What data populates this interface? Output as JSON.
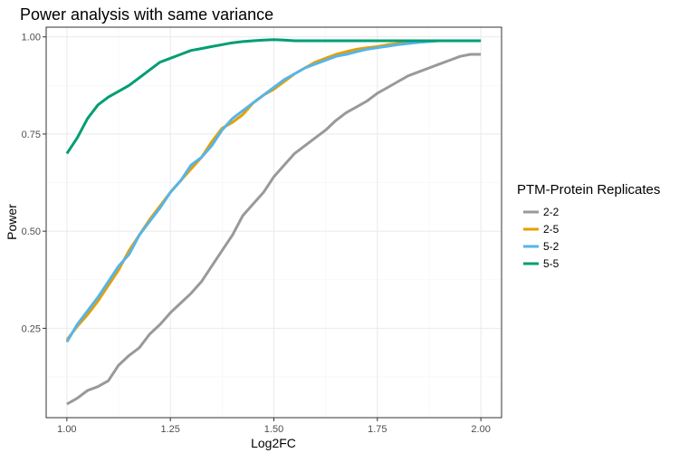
{
  "chart_data": {
    "type": "line",
    "title": "Power analysis with same variance",
    "xlabel": "Log2FC",
    "ylabel": "Power",
    "xlim": [
      0.95,
      2.05
    ],
    "ylim": [
      0.02,
      1.025
    ],
    "x_ticks": [
      1.0,
      1.25,
      1.5,
      1.75,
      2.0
    ],
    "x_tick_labels": [
      "1.00",
      "1.25",
      "1.50",
      "1.75",
      "2.00"
    ],
    "y_ticks": [
      0.25,
      0.5,
      0.75,
      1.0
    ],
    "y_tick_labels": [
      "0.25",
      "0.50",
      "0.75",
      "1.00"
    ],
    "grid": true,
    "legend": {
      "title": "PTM-Protein Replicates",
      "placement": "right"
    },
    "series": [
      {
        "name": "2-2",
        "color": "#999999",
        "x": [
          1.0,
          1.025,
          1.05,
          1.075,
          1.1,
          1.125,
          1.15,
          1.175,
          1.2,
          1.225,
          1.25,
          1.275,
          1.3,
          1.325,
          1.35,
          1.375,
          1.4,
          1.425,
          1.45,
          1.475,
          1.5,
          1.525,
          1.55,
          1.575,
          1.6,
          1.625,
          1.65,
          1.675,
          1.7,
          1.725,
          1.75,
          1.775,
          1.8,
          1.825,
          1.85,
          1.875,
          1.9,
          1.925,
          1.95,
          1.975,
          2.0
        ],
        "y": [
          0.055,
          0.07,
          0.09,
          0.1,
          0.115,
          0.155,
          0.18,
          0.2,
          0.235,
          0.26,
          0.29,
          0.315,
          0.34,
          0.37,
          0.41,
          0.45,
          0.49,
          0.54,
          0.57,
          0.6,
          0.64,
          0.67,
          0.7,
          0.72,
          0.74,
          0.76,
          0.785,
          0.805,
          0.82,
          0.835,
          0.855,
          0.87,
          0.885,
          0.9,
          0.91,
          0.92,
          0.93,
          0.94,
          0.95,
          0.955,
          0.955
        ]
      },
      {
        "name": "2-5",
        "color": "#E69F00",
        "x": [
          1.0,
          1.025,
          1.05,
          1.075,
          1.1,
          1.125,
          1.15,
          1.175,
          1.2,
          1.225,
          1.25,
          1.275,
          1.3,
          1.325,
          1.35,
          1.375,
          1.4,
          1.425,
          1.45,
          1.475,
          1.5,
          1.525,
          1.55,
          1.575,
          1.6,
          1.625,
          1.65,
          1.675,
          1.7,
          1.725,
          1.75,
          1.775,
          1.8,
          1.825,
          1.85,
          1.875,
          1.9,
          1.925,
          1.95,
          1.975,
          2.0
        ],
        "y": [
          0.22,
          0.255,
          0.285,
          0.32,
          0.36,
          0.4,
          0.45,
          0.49,
          0.53,
          0.565,
          0.6,
          0.63,
          0.66,
          0.69,
          0.73,
          0.765,
          0.78,
          0.8,
          0.83,
          0.85,
          0.865,
          0.885,
          0.905,
          0.92,
          0.935,
          0.945,
          0.955,
          0.962,
          0.968,
          0.972,
          0.975,
          0.98,
          0.983,
          0.986,
          0.988,
          0.99,
          0.99,
          0.99,
          0.99,
          0.99,
          0.99
        ]
      },
      {
        "name": "5-2",
        "color": "#56B4E9",
        "x": [
          1.0,
          1.025,
          1.05,
          1.075,
          1.1,
          1.125,
          1.15,
          1.175,
          1.2,
          1.225,
          1.25,
          1.275,
          1.3,
          1.325,
          1.35,
          1.375,
          1.4,
          1.425,
          1.45,
          1.475,
          1.5,
          1.525,
          1.55,
          1.575,
          1.6,
          1.625,
          1.65,
          1.675,
          1.7,
          1.725,
          1.75,
          1.775,
          1.8,
          1.825,
          1.85,
          1.875,
          1.9,
          1.925,
          1.95,
          1.975,
          2.0
        ],
        "y": [
          0.215,
          0.26,
          0.295,
          0.33,
          0.37,
          0.41,
          0.44,
          0.49,
          0.525,
          0.56,
          0.6,
          0.63,
          0.67,
          0.69,
          0.72,
          0.76,
          0.79,
          0.81,
          0.83,
          0.85,
          0.87,
          0.89,
          0.905,
          0.92,
          0.93,
          0.94,
          0.95,
          0.955,
          0.962,
          0.968,
          0.972,
          0.976,
          0.98,
          0.983,
          0.986,
          0.988,
          0.99,
          0.99,
          0.99,
          0.99,
          0.99
        ]
      },
      {
        "name": "5-5",
        "color": "#009E73",
        "x": [
          1.0,
          1.025,
          1.05,
          1.075,
          1.1,
          1.125,
          1.15,
          1.175,
          1.2,
          1.225,
          1.25,
          1.275,
          1.3,
          1.325,
          1.35,
          1.375,
          1.4,
          1.425,
          1.45,
          1.475,
          1.5,
          1.525,
          1.55,
          1.575,
          1.6,
          1.625,
          1.65,
          1.675,
          1.7,
          1.725,
          1.75,
          1.775,
          1.8,
          1.825,
          1.85,
          1.875,
          1.9,
          1.925,
          1.95,
          1.975,
          2.0
        ],
        "y": [
          0.7,
          0.74,
          0.79,
          0.825,
          0.845,
          0.86,
          0.875,
          0.895,
          0.915,
          0.935,
          0.945,
          0.955,
          0.965,
          0.97,
          0.975,
          0.98,
          0.985,
          0.988,
          0.99,
          0.992,
          0.993,
          0.992,
          0.99,
          0.99,
          0.99,
          0.99,
          0.99,
          0.99,
          0.99,
          0.99,
          0.99,
          0.99,
          0.99,
          0.99,
          0.99,
          0.99,
          0.99,
          0.99,
          0.99,
          0.99,
          0.99
        ]
      }
    ]
  }
}
